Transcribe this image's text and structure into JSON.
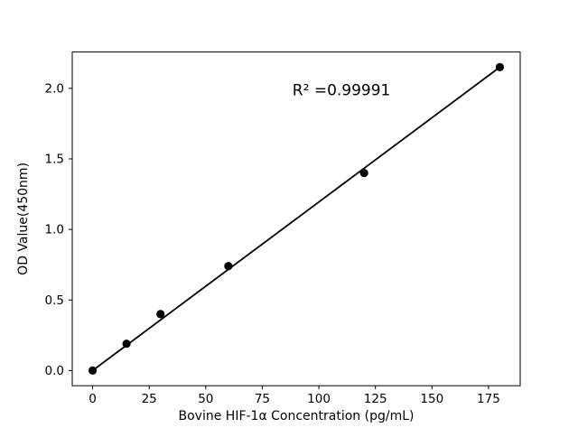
{
  "chart_data": {
    "type": "scatter",
    "title": "",
    "xlabel": "Bovine HIF-1α Concentration (pg/mL)",
    "ylabel": "OD Value(450nm)",
    "annotation": {
      "text": "R² =0.99991",
      "x": 110,
      "y": 1.95
    },
    "x": [
      0,
      15,
      30,
      60,
      120,
      180
    ],
    "y": [
      0.0,
      0.19,
      0.4,
      0.74,
      1.4,
      2.15
    ],
    "fit_line": {
      "x": [
        0,
        180
      ],
      "y": [
        0.0,
        2.15
      ]
    },
    "xlim": [
      -9,
      189
    ],
    "ylim": [
      -0.1075,
      2.2575
    ],
    "xticks": [
      0,
      25,
      50,
      75,
      100,
      125,
      150,
      175
    ],
    "xtick_labels": [
      "0",
      "25",
      "50",
      "75",
      "100",
      "125",
      "150",
      "175"
    ],
    "yticks": [
      0.0,
      0.5,
      1.0,
      1.5,
      2.0
    ],
    "ytick_labels": [
      "0.0",
      "0.5",
      "1.0",
      "1.5",
      "2.0"
    ],
    "grid": false,
    "legend": null,
    "marker_color": "#000000",
    "line_color": "#000000",
    "axis_color": "#000000",
    "background_color": "#ffffff"
  }
}
